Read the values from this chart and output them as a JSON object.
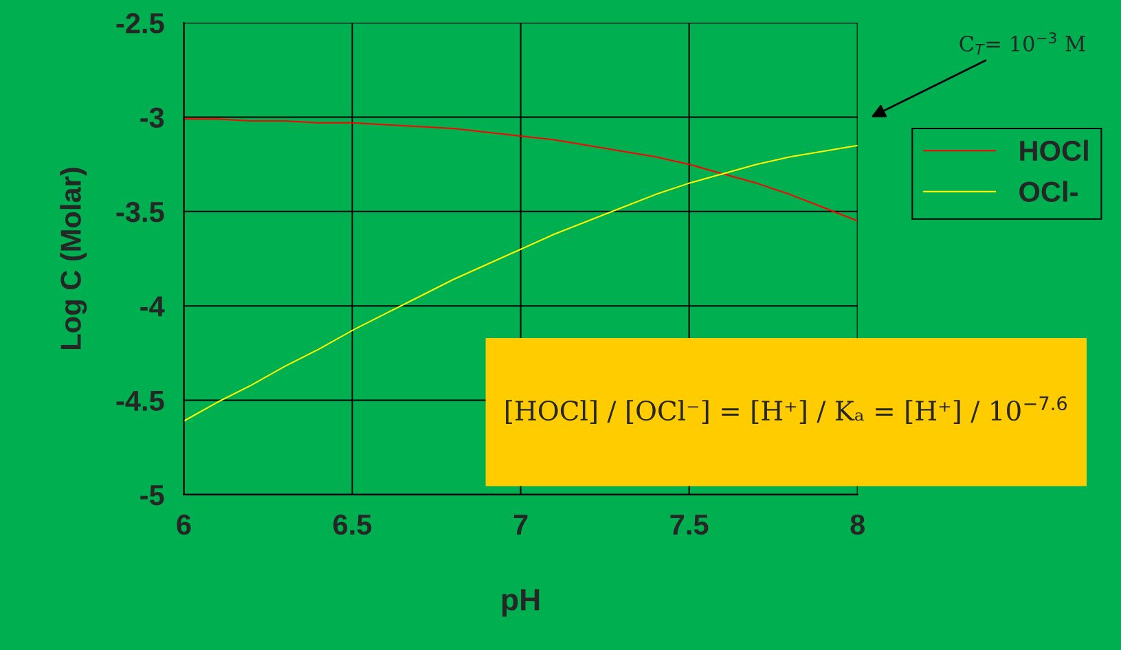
{
  "chart_data": {
    "type": "line",
    "xlabel": "pH",
    "ylabel": "Log C (Molar)",
    "x": [
      6.0,
      6.1,
      6.2,
      6.3,
      6.4,
      6.5,
      6.6,
      6.7,
      6.8,
      6.9,
      7.0,
      7.1,
      7.2,
      7.3,
      7.4,
      7.5,
      7.6,
      7.7,
      7.8,
      7.9,
      8.0
    ],
    "series": [
      {
        "name": "HOCl",
        "color": "#ff0000",
        "values": [
          -3.01,
          -3.01,
          -3.02,
          -3.02,
          -3.03,
          -3.03,
          -3.04,
          -3.05,
          -3.06,
          -3.08,
          -3.1,
          -3.12,
          -3.15,
          -3.18,
          -3.21,
          -3.25,
          -3.3,
          -3.35,
          -3.41,
          -3.48,
          -3.55
        ]
      },
      {
        "name": "OCl-",
        "color": "#ffff00",
        "values": [
          -4.61,
          -4.51,
          -4.42,
          -4.32,
          -4.23,
          -4.13,
          -4.04,
          -3.95,
          -3.86,
          -3.78,
          -3.7,
          -3.62,
          -3.55,
          -3.48,
          -3.41,
          -3.35,
          -3.3,
          -3.25,
          -3.21,
          -3.18,
          -3.15
        ]
      }
    ],
    "xlim": [
      6,
      8
    ],
    "xticks": [
      6,
      6.5,
      7,
      7.5,
      8
    ],
    "ylim": [
      -5,
      -2.5
    ],
    "yticks": [
      -5,
      -4.5,
      -4,
      -3.5,
      -3,
      -2.5
    ],
    "grid": true,
    "legend": "right",
    "marker": "none",
    "line_style": "solid",
    "annotations": [
      "C$_{T}$= 10$^{−3}$ M",
      "[HOCl] / [OCl⁻] = [H⁺] / Kₐ = [H⁺] / 10$^{−7.6}$"
    ]
  }
}
